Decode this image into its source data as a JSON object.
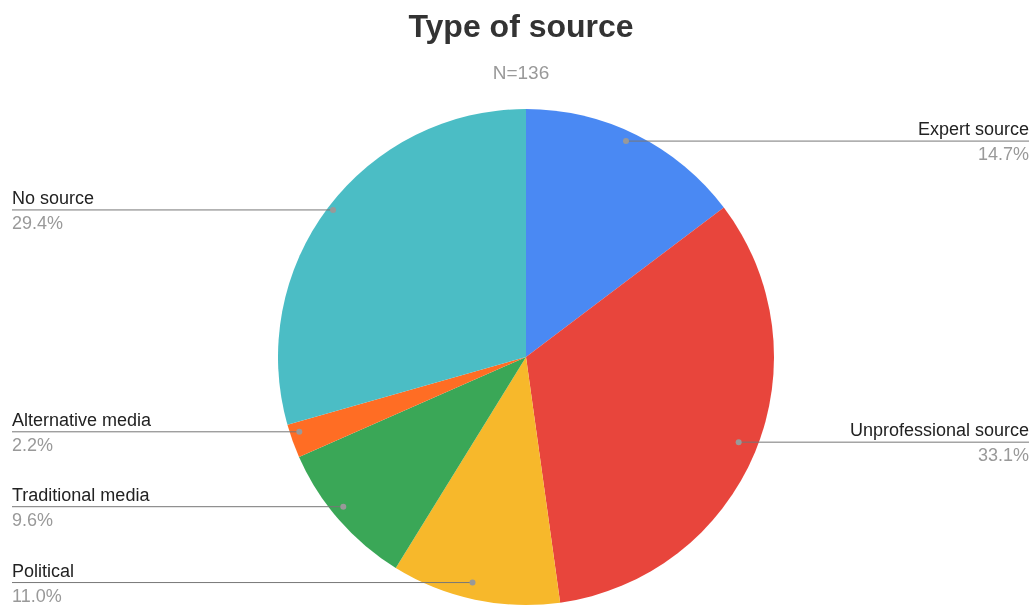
{
  "chart_data": {
    "type": "pie",
    "title": "Type of source",
    "subtitle": "N=136",
    "categories": [
      "Expert source",
      "Unprofessional source",
      "Political",
      "Traditional media",
      "Alternative media",
      "No source"
    ],
    "values": [
      14.7,
      33.1,
      11.0,
      9.6,
      2.2,
      29.4
    ],
    "colors": [
      "#4a89f3",
      "#e8453c",
      "#f7b82b",
      "#3aa757",
      "#ff6d24",
      "#4bbdc5"
    ],
    "value_labels": [
      "14.7%",
      "33.1%",
      "11.0%",
      "9.6%",
      "2.2%",
      "29.4%"
    ]
  }
}
